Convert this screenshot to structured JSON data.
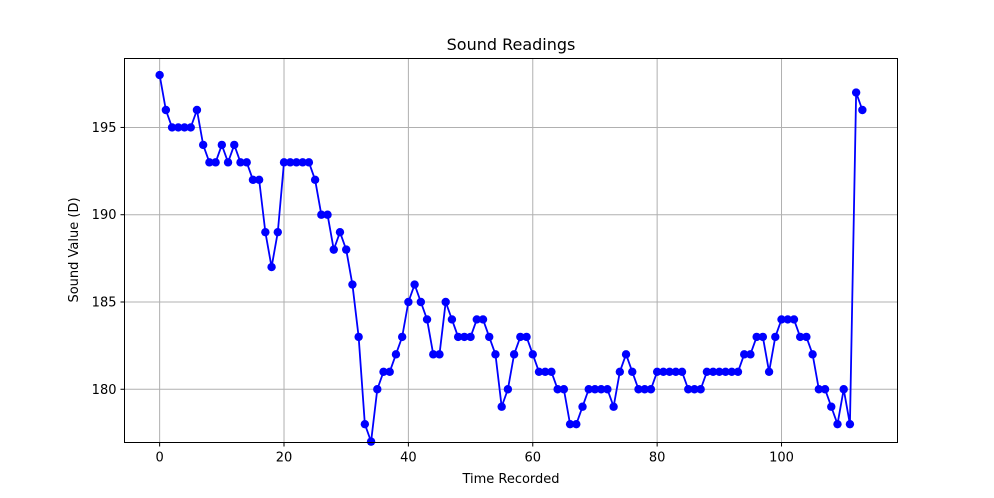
{
  "chart_data": {
    "type": "line",
    "title": "Sound Readings",
    "xlabel": "Time Recorded",
    "ylabel": "Sound Value (D)",
    "xlim": [
      -5.65,
      118.65
    ],
    "ylim": [
      176.95,
      198.95
    ],
    "xticks": [
      0,
      20,
      40,
      60,
      80,
      100
    ],
    "yticks": [
      180,
      185,
      190,
      195
    ],
    "grid": true,
    "series": [
      {
        "color": "#0000ff",
        "marker": "circle",
        "x": [
          0,
          1,
          2,
          3,
          4,
          5,
          6,
          7,
          8,
          9,
          10,
          11,
          12,
          13,
          14,
          15,
          16,
          17,
          18,
          19,
          20,
          21,
          22,
          23,
          24,
          25,
          26,
          27,
          28,
          29,
          30,
          31,
          32,
          33,
          34,
          35,
          36,
          37,
          38,
          39,
          40,
          41,
          42,
          43,
          44,
          45,
          46,
          47,
          48,
          49,
          50,
          51,
          52,
          53,
          54,
          55,
          56,
          57,
          58,
          59,
          60,
          61,
          62,
          63,
          64,
          65,
          66,
          67,
          68,
          69,
          70,
          71,
          72,
          73,
          74,
          75,
          76,
          77,
          78,
          79,
          80,
          81,
          82,
          83,
          84,
          85,
          86,
          87,
          88,
          89,
          90,
          91,
          92,
          93,
          94,
          95,
          96,
          97,
          98,
          99,
          100,
          101,
          102,
          103,
          104,
          105,
          106,
          107,
          108,
          109,
          110,
          111,
          112,
          113
        ],
        "y": [
          198,
          196,
          195,
          195,
          195,
          195,
          196,
          194,
          193,
          193,
          194,
          193,
          194,
          193,
          193,
          192,
          192,
          189,
          187,
          189,
          193,
          193,
          193,
          193,
          193,
          192,
          190,
          190,
          188,
          189,
          188,
          186,
          183,
          178,
          177,
          180,
          181,
          181,
          182,
          183,
          185,
          186,
          185,
          184,
          182,
          182,
          185,
          184,
          183,
          183,
          183,
          184,
          184,
          183,
          182,
          179,
          180,
          182,
          183,
          183,
          182,
          181,
          181,
          181,
          180,
          180,
          178,
          178,
          179,
          180,
          180,
          180,
          180,
          179,
          181,
          182,
          181,
          180,
          180,
          180,
          181,
          181,
          181,
          181,
          181,
          180,
          180,
          180,
          181,
          181,
          181,
          181,
          181,
          181,
          182,
          182,
          183,
          183,
          181,
          183,
          184,
          184,
          184,
          183,
          183,
          182,
          180,
          180,
          179,
          178,
          180,
          178,
          197,
          196
        ]
      }
    ]
  }
}
